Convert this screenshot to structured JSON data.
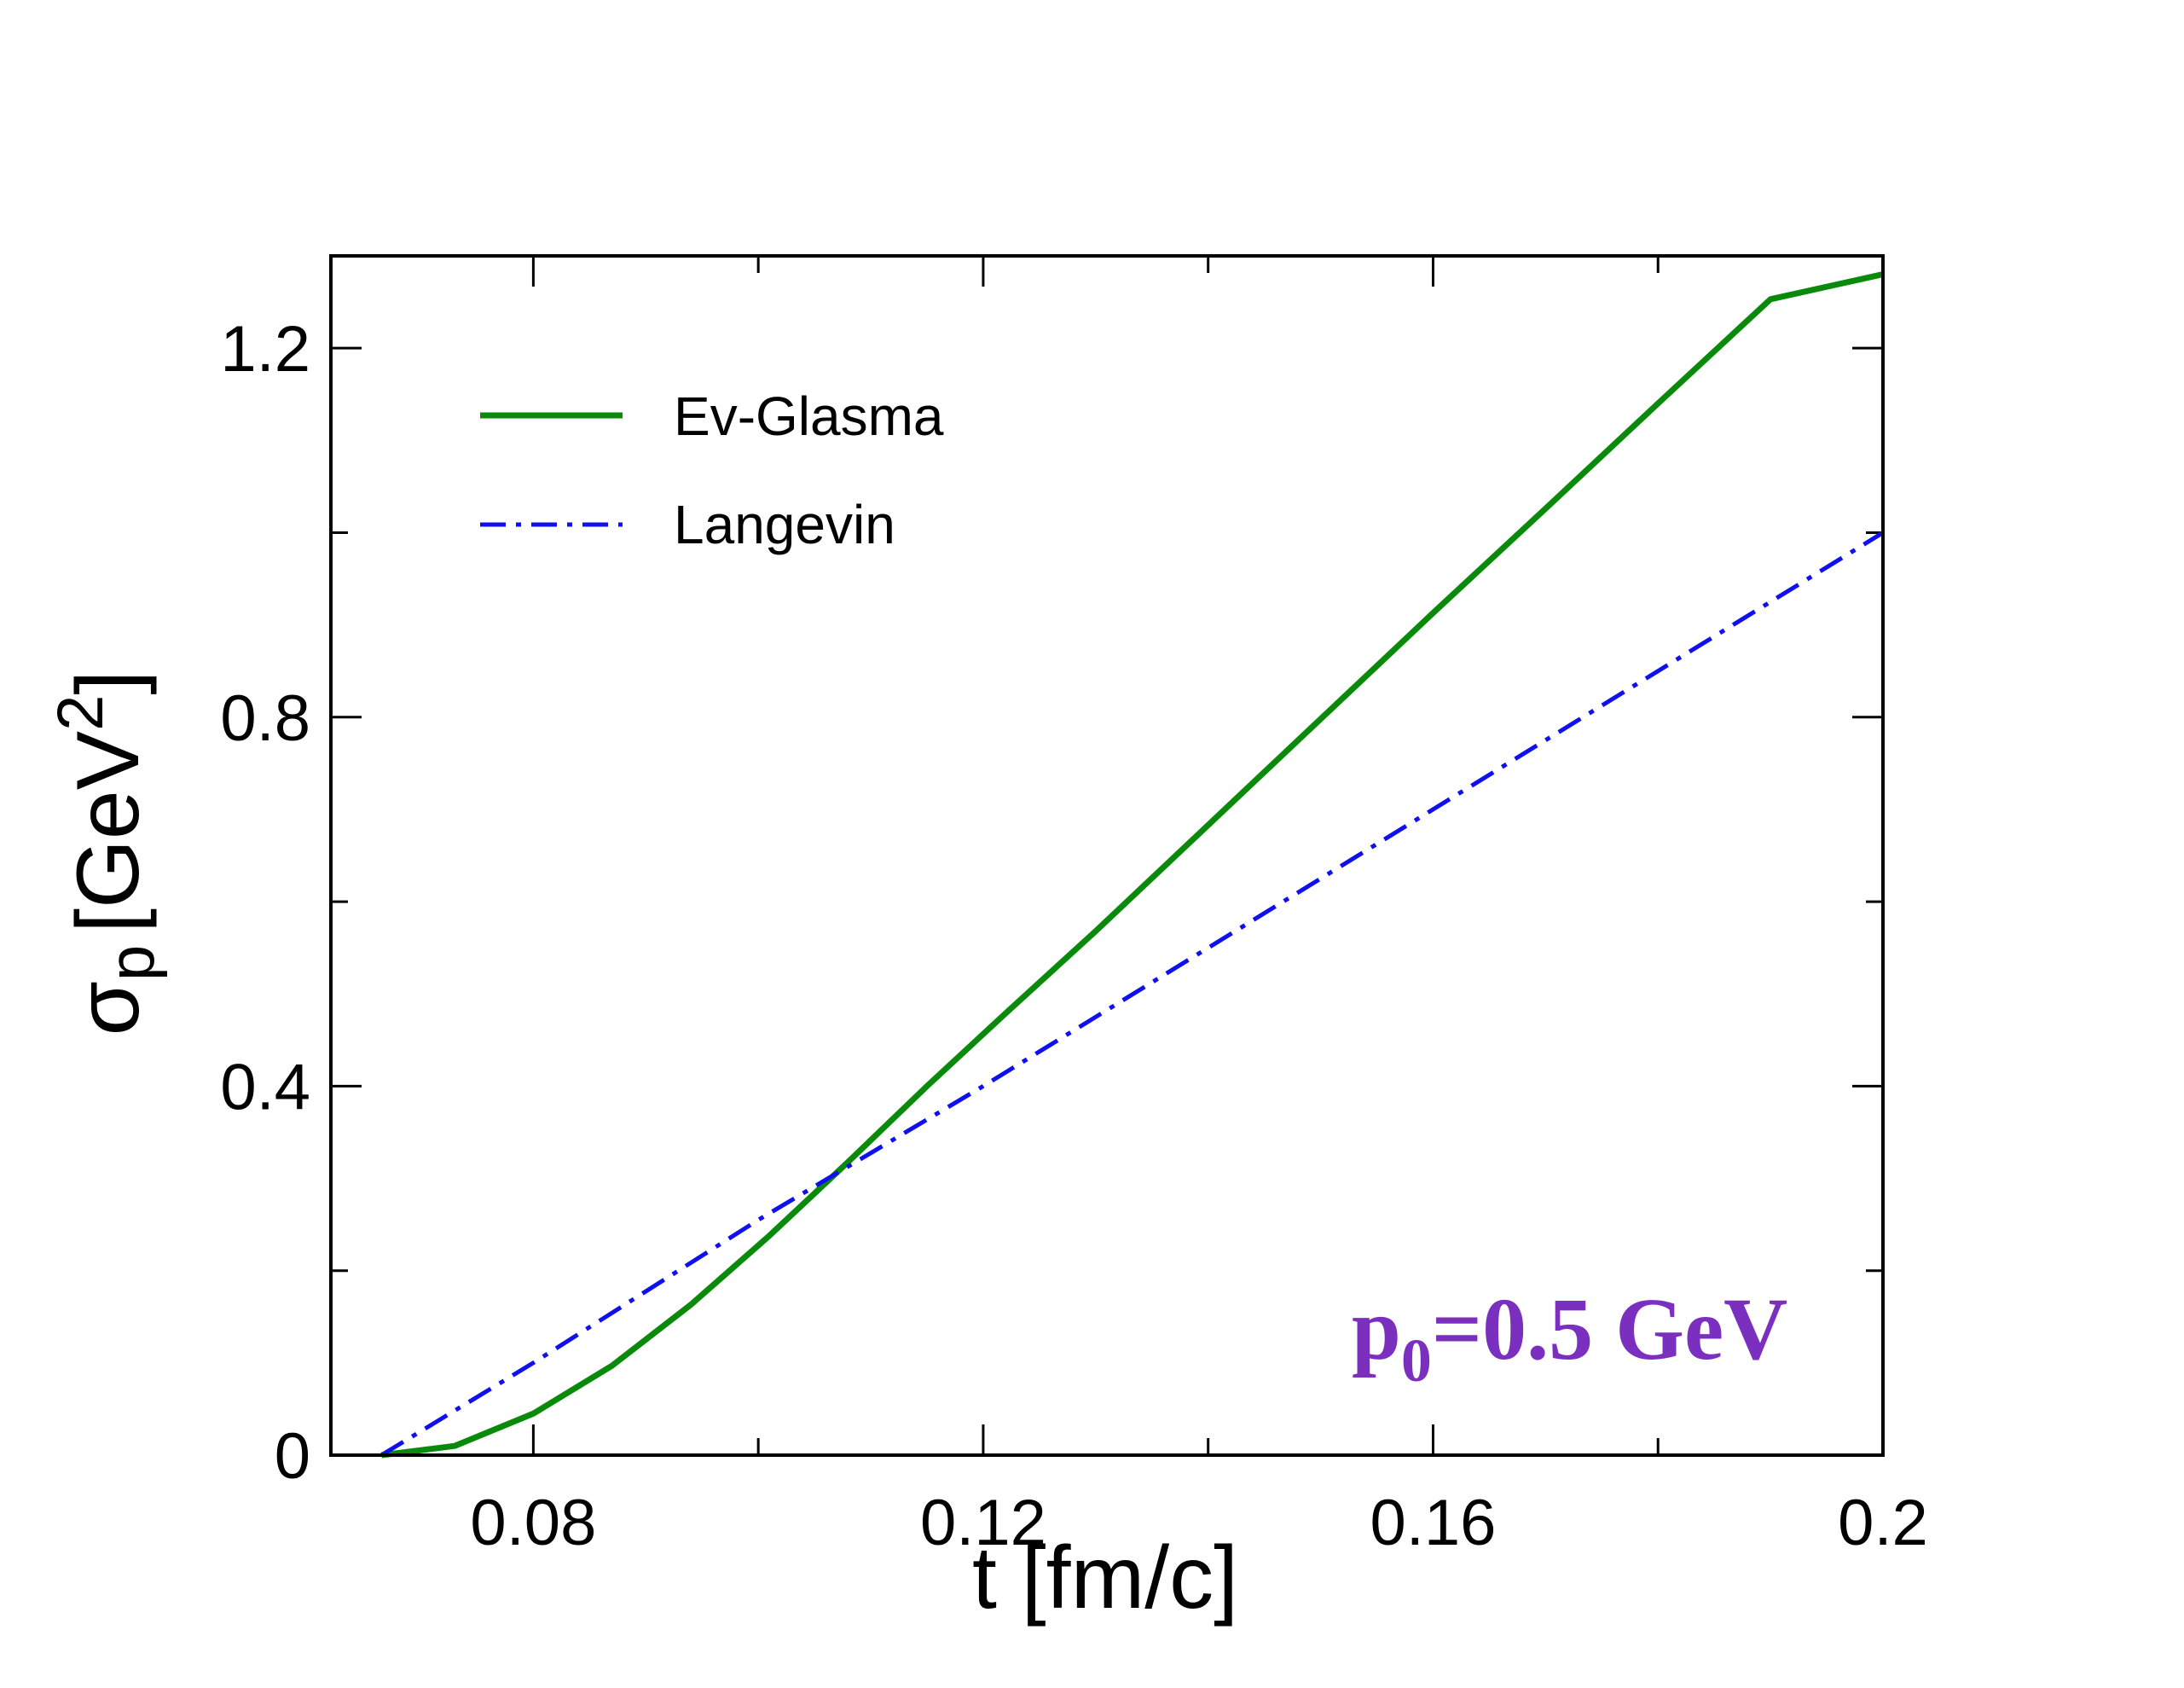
{
  "chart_data": {
    "type": "line",
    "title": "",
    "xlabel": "t [fm/c]",
    "ylabel": {
      "symbol": "σ",
      "subscript": "p",
      "unit_open": "[GeV",
      "unit_sup": "2",
      "unit_close": "]"
    },
    "xlim": [
      0.062,
      0.2
    ],
    "ylim": [
      0,
      1.3
    ],
    "x_ticks": [
      {
        "value": 0.08,
        "label": "0.08"
      },
      {
        "value": 0.12,
        "label": "0.12"
      },
      {
        "value": 0.16,
        "label": "0.16"
      },
      {
        "value": 0.2,
        "label": "0.2"
      }
    ],
    "x_minor_ticks": [
      0.1,
      0.14,
      0.18
    ],
    "y_ticks": [
      {
        "value": 0,
        "label": "0"
      },
      {
        "value": 0.4,
        "label": "0.4"
      },
      {
        "value": 0.8,
        "label": "0.8"
      },
      {
        "value": 1.2,
        "label": "1.2"
      }
    ],
    "y_minor_ticks": [
      0.2,
      0.6,
      1.0
    ],
    "grid": false,
    "legend_position": "top-left",
    "series": [
      {
        "name": "Ev-Glasma",
        "color": "#0a8a0a",
        "style": "solid",
        "x": [
          0.0665,
          0.073,
          0.08,
          0.087,
          0.094,
          0.101,
          0.108,
          0.115,
          0.122,
          0.13,
          0.14,
          0.15,
          0.16,
          0.17,
          0.18,
          0.19,
          0.2
        ],
        "y": [
          0.0,
          0.01,
          0.045,
          0.097,
          0.163,
          0.238,
          0.318,
          0.4,
          0.479,
          0.568,
          0.683,
          0.798,
          0.913,
          1.026,
          1.14,
          1.253,
          1.28
        ]
      },
      {
        "name": "Langevin",
        "color": "#1010ee",
        "style": "dashdot",
        "x": [
          0.0665,
          0.08,
          0.1,
          0.12,
          0.14,
          0.16,
          0.18,
          0.2
        ],
        "y": [
          0.0,
          0.1,
          0.255,
          0.4,
          0.55,
          0.7,
          0.85,
          1.0
        ]
      }
    ],
    "annotations": [
      {
        "text_main": "p",
        "text_sub": "0",
        "text_rest": "=0.5 GeV",
        "color": "#7b2fbe",
        "position": "bottom-right"
      }
    ]
  }
}
